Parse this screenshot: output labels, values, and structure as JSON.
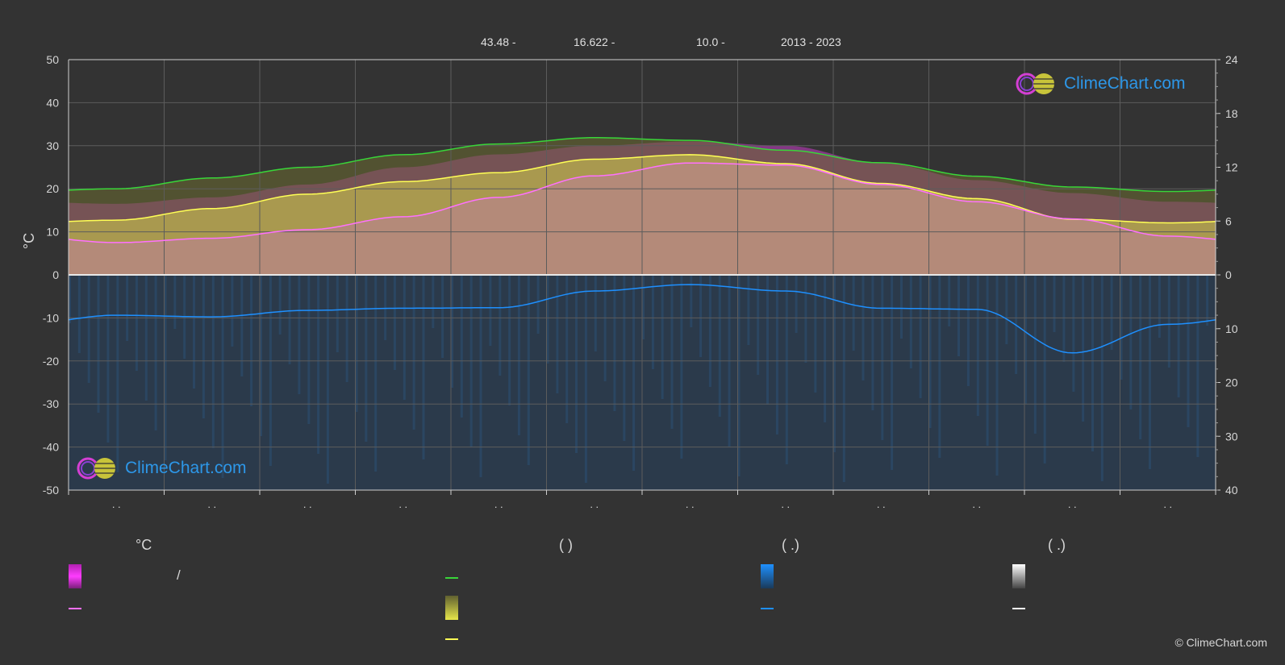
{
  "header": {
    "lat": "43.48 -",
    "lon": "16.622 -",
    "elev": "10.0 -",
    "years": "2013 - 2023"
  },
  "logo_text": "ClimeChart.com",
  "copyright": "© ClimeChart.com",
  "legend": {
    "temp_head": "°C",
    "sun_head": "(          )",
    "rain_head": "(    .)",
    "snow_head": "(    .)",
    "slash": "/"
  },
  "colors": {
    "background": "#333333",
    "max_min_band": "#e63ce6",
    "mean_line": "#ff70ff",
    "daylight_line": "#39d639",
    "sunshine_band": "#d4d44a",
    "sunshine_line": "#ffff55",
    "rain_bar": "#2a7dd1",
    "rain_line": "#1e90ff",
    "snow_bar": "#ffffff",
    "grid": "#5c5c5c"
  },
  "chart_data": {
    "type": "line",
    "left_axis": {
      "label": "°C",
      "ylim": [
        -50,
        50
      ],
      "ticks": [
        50,
        40,
        30,
        20,
        10,
        0,
        -10,
        -20,
        -30,
        -40,
        -50
      ]
    },
    "right_axis_top": {
      "ylim": [
        0,
        24
      ],
      "ticks": [
        24,
        18,
        12,
        6,
        0
      ]
    },
    "right_axis_bottom": {
      "ylim": [
        0,
        40
      ],
      "ticks": [
        0,
        10,
        20,
        30,
        40
      ]
    },
    "months": [
      "",
      "",
      "",
      "",
      "",
      "",
      "",
      "",
      "",
      "",
      "",
      ""
    ],
    "month_tick_text": ". .",
    "x": [
      0,
      1,
      2,
      3,
      4,
      5,
      6,
      7,
      8,
      9,
      10,
      11
    ],
    "series": [
      {
        "key": "daylight",
        "axis": "right_top",
        "values": [
          9.6,
          10.8,
          12.0,
          13.4,
          14.6,
          15.3,
          15.0,
          13.9,
          12.5,
          11.0,
          9.8,
          9.3
        ]
      },
      {
        "key": "sunshine",
        "axis": "right_top",
        "values": [
          6.1,
          7.4,
          9.0,
          10.4,
          11.4,
          12.9,
          13.4,
          12.4,
          10.2,
          8.5,
          6.2,
          5.8
        ]
      },
      {
        "key": "mean_temp",
        "axis": "left",
        "values": [
          7.5,
          8.5,
          10.5,
          13.5,
          18.0,
          23.0,
          26.0,
          25.5,
          21.0,
          17.0,
          13.0,
          9.0
        ]
      },
      {
        "key": "max_temp",
        "axis": "left",
        "values": [
          16.5,
          18.0,
          21.0,
          25.0,
          28.0,
          30.0,
          31.0,
          30.0,
          26.0,
          22.0,
          19.0,
          17.0
        ]
      },
      {
        "key": "precipitation",
        "axis": "right_bottom",
        "values": [
          7.5,
          7.8,
          6.6,
          6.2,
          6.1,
          3.0,
          1.8,
          3.0,
          6.2,
          6.4,
          14.5,
          9.2
        ]
      }
    ]
  }
}
